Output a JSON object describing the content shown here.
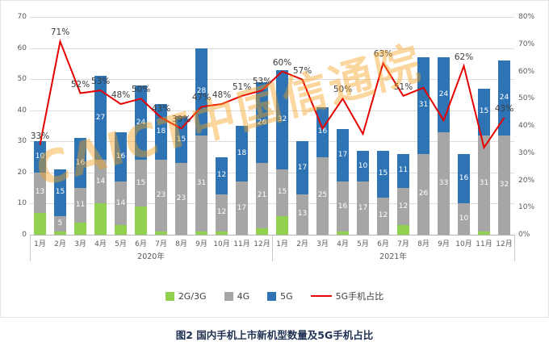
{
  "caption": "图2  国内手机上市新机型数量及5G手机占比",
  "watermark": "CAICT中国信通院",
  "chart_data": {
    "type": "bar",
    "stacked": true,
    "grid": true,
    "legend_position": "bottom",
    "categories": [
      "1月",
      "2月",
      "3月",
      "4月",
      "5月",
      "6月",
      "7月",
      "8月",
      "9月",
      "10月",
      "11月",
      "12月",
      "1月",
      "2月",
      "3月",
      "4月",
      "5月",
      "6月",
      "7月",
      "8月",
      "9月",
      "10月",
      "11月",
      "12月"
    ],
    "groups": [
      {
        "label": "2020年",
        "span": 12
      },
      {
        "label": "2021年",
        "span": 12
      }
    ],
    "series": [
      {
        "name": "2G/3G",
        "color": "#92d050",
        "show_labels": false,
        "values": [
          7,
          1,
          4,
          10,
          3,
          9,
          1,
          0,
          1,
          1,
          0,
          2,
          6,
          0,
          0,
          1,
          0,
          0,
          3,
          0,
          0,
          0,
          1,
          0
        ]
      },
      {
        "name": "4G",
        "color": "#a6a6a6",
        "show_labels": true,
        "values": [
          13,
          5,
          11,
          14,
          14,
          15,
          23,
          23,
          31,
          12,
          17,
          21,
          15,
          13,
          25,
          16,
          17,
          12,
          12,
          26,
          33,
          10,
          31,
          32
        ]
      },
      {
        "name": "5G",
        "color": "#2e74b5",
        "show_labels": true,
        "values": [
          10,
          15,
          16,
          27,
          16,
          24,
          18,
          15,
          28,
          12,
          18,
          26,
          32,
          17,
          16,
          17,
          10,
          15,
          11,
          31,
          24,
          16,
          15,
          24
        ]
      }
    ],
    "line": {
      "name": "5G手机占比",
      "color": "#e60000",
      "values": [
        33,
        71,
        52,
        53,
        48,
        50,
        43,
        39,
        47,
        48,
        51,
        53,
        60,
        57,
        39,
        50,
        37,
        63,
        51,
        54,
        42,
        62,
        32,
        43
      ],
      "labels": [
        "33%",
        "71%",
        "52%",
        "53%",
        "48%",
        "50%",
        "43%",
        "39%",
        "47%",
        "48%",
        "51%",
        "53%",
        "60%",
        "57%",
        null,
        "50%",
        null,
        "63%",
        "51%",
        null,
        null,
        "62%",
        null,
        "43%"
      ]
    },
    "left_axis": {
      "min": 0,
      "max": 70,
      "step": 10,
      "suffix": ""
    },
    "right_axis": {
      "min": 0,
      "max": 80,
      "step": 10,
      "suffix": "%"
    }
  }
}
